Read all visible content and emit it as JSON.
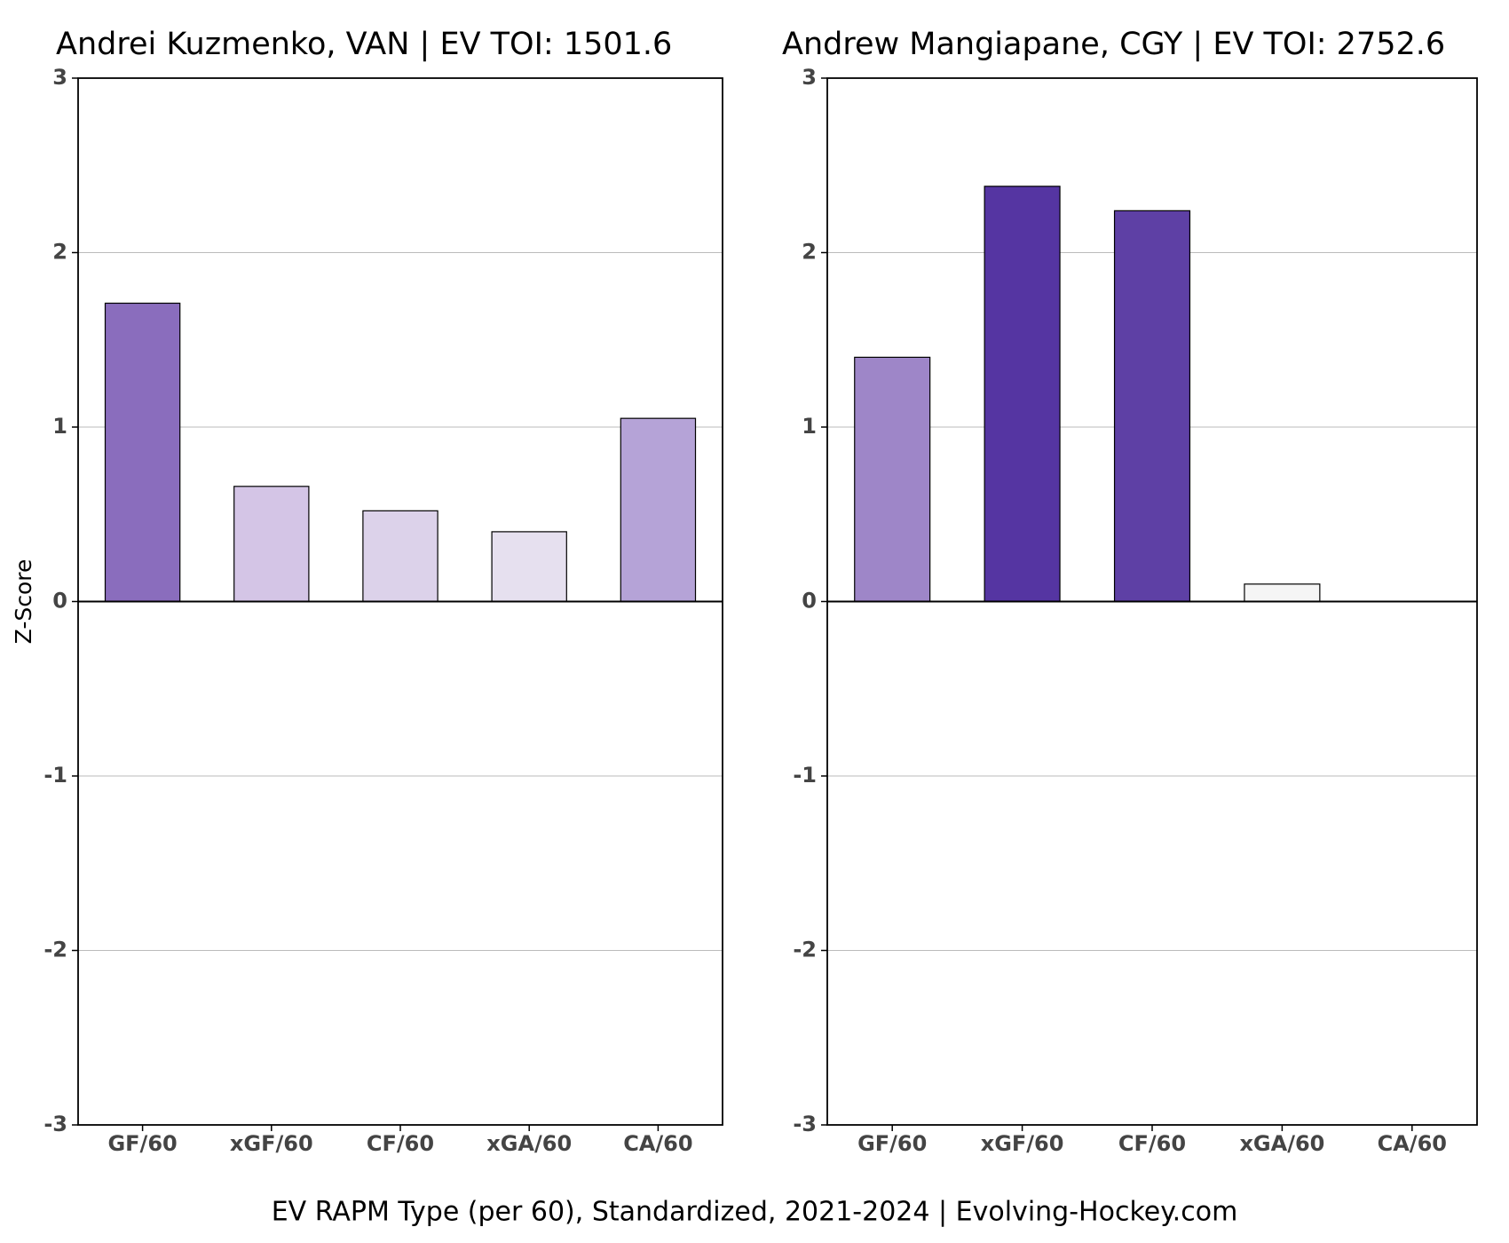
{
  "caption": "EV RAPM Type (per 60), Standardized, 2021-2024    |    Evolving-Hockey.com",
  "chart_data": [
    {
      "type": "bar",
      "title": "Andrei Kuzmenko, VAN  |  EV TOI: 1501.6",
      "y_label": "Z-Score",
      "categories": [
        "GF/60",
        "xGF/60",
        "CF/60",
        "xGA/60",
        "CA/60"
      ],
      "values": [
        1.71,
        0.66,
        0.52,
        0.4,
        1.05
      ],
      "colors": [
        "#8a6dbd",
        "#d4c5e6",
        "#dcd2ea",
        "#e6e0ef",
        "#b5a3d7"
      ],
      "ylim": [
        -3,
        3
      ],
      "yticks": [
        -3,
        -2,
        -1,
        0,
        1,
        2,
        3
      ],
      "grid": true
    },
    {
      "type": "bar",
      "title": "Andrew Mangiapane, CGY  |  EV TOI: 2752.6",
      "categories": [
        "GF/60",
        "xGF/60",
        "CF/60",
        "xGA/60",
        "CA/60"
      ],
      "values": [
        1.4,
        2.38,
        2.24,
        0.1,
        0.0
      ],
      "colors": [
        "#9e86c8",
        "#5535a2",
        "#5e40a5",
        "#f5f5f5",
        "#ffffff"
      ],
      "ylim": [
        -3,
        3
      ],
      "yticks": [
        -3,
        -2,
        -1,
        0,
        1,
        2,
        3
      ],
      "grid": true
    }
  ]
}
